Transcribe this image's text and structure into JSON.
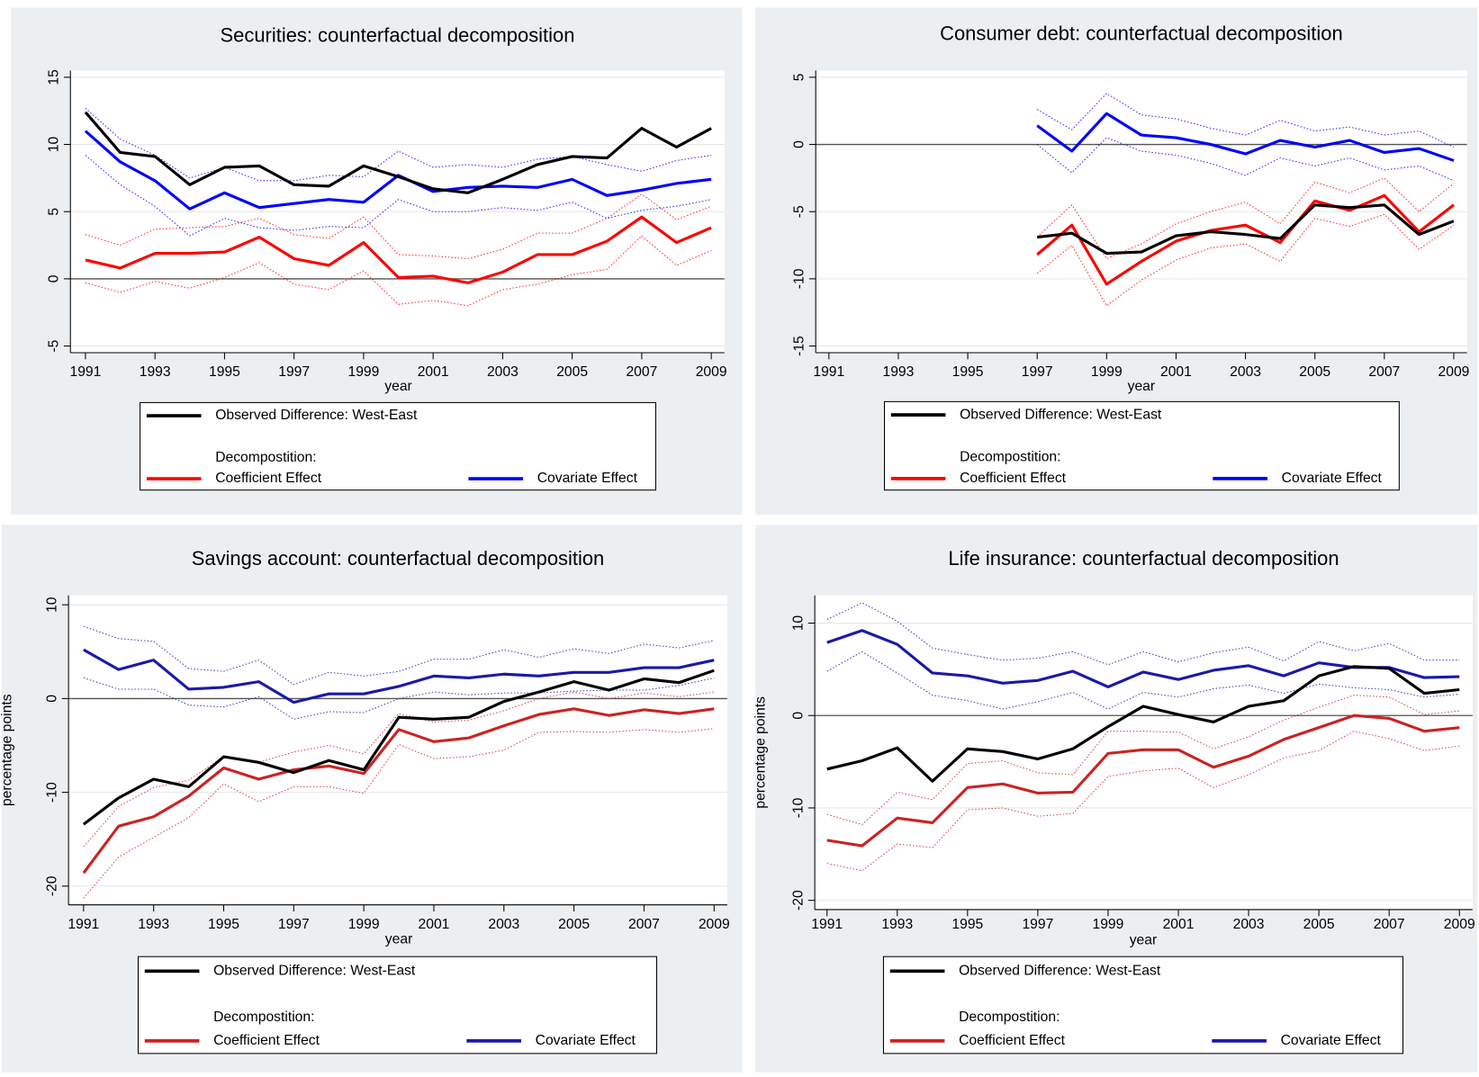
{
  "chart_data": [
    {
      "type": "line",
      "title": "Securities: counterfactual decomposition",
      "xlabel": "year",
      "x": [
        1991,
        1992,
        1993,
        1994,
        1995,
        1996,
        1997,
        1998,
        1999,
        2000,
        2001,
        2002,
        2003,
        2004,
        2005,
        2006,
        2007,
        2008,
        2009
      ],
      "xlim": [
        1991,
        2009
      ],
      "xticks": [
        1991,
        1993,
        1995,
        1997,
        1999,
        2001,
        2003,
        2005,
        2007,
        2009
      ],
      "ylim": [
        -5.5,
        15.5
      ],
      "yticks": [
        -5,
        0,
        5,
        10,
        15
      ],
      "grid": true,
      "refline": 0,
      "legend_heading": "Decompostition:",
      "series": [
        {
          "name": "Observed Difference: West-East",
          "color": "#000000",
          "values": [
            12.4,
            9.4,
            9.1,
            7.0,
            8.3,
            8.4,
            7.0,
            6.9,
            8.4,
            7.6,
            6.7,
            6.4,
            7.4,
            8.5,
            9.1,
            9.0,
            11.2,
            9.8,
            11.2
          ]
        },
        {
          "name": "Coefficient Effect",
          "color": "#ff0000",
          "values": [
            1.4,
            0.8,
            1.9,
            1.9,
            2.0,
            3.1,
            1.5,
            1.0,
            2.7,
            0.1,
            0.2,
            -0.3,
            0.5,
            1.8,
            1.8,
            2.8,
            4.6,
            2.7,
            3.8
          ],
          "ci_upper": [
            3.3,
            2.5,
            3.7,
            3.8,
            3.9,
            4.5,
            3.3,
            3.0,
            4.6,
            1.8,
            1.7,
            1.5,
            2.2,
            3.4,
            3.4,
            4.5,
            6.3,
            4.4,
            5.4
          ],
          "ci_lower": [
            -0.3,
            -1.0,
            -0.2,
            -0.7,
            0.1,
            1.2,
            -0.4,
            -0.8,
            0.6,
            -1.9,
            -1.6,
            -2.0,
            -0.8,
            -0.4,
            0.3,
            0.7,
            3.2,
            1.0,
            2.1
          ]
        },
        {
          "name": "Covariate Effect",
          "color": "#0000ff",
          "values": [
            11.0,
            8.7,
            7.3,
            5.2,
            6.4,
            5.3,
            5.6,
            5.9,
            5.7,
            7.7,
            6.5,
            6.8,
            6.9,
            6.8,
            7.4,
            6.2,
            6.6,
            7.1,
            7.4
          ],
          "ci_upper": [
            12.7,
            10.4,
            9.2,
            7.5,
            8.3,
            7.3,
            7.3,
            7.7,
            7.6,
            9.5,
            8.3,
            8.5,
            8.3,
            8.9,
            9.1,
            8.5,
            8.0,
            8.8,
            9.2
          ],
          "ci_lower": [
            9.2,
            7.0,
            5.4,
            3.2,
            4.5,
            3.8,
            3.6,
            3.9,
            3.8,
            5.9,
            5.0,
            5.0,
            5.3,
            5.1,
            5.7,
            4.5,
            5.1,
            5.4,
            5.9
          ]
        }
      ]
    },
    {
      "type": "line",
      "title": "Consumer debt: counterfactual decomposition",
      "xlabel": "year",
      "x": [
        1991,
        1992,
        1993,
        1994,
        1995,
        1996,
        1997,
        1998,
        1999,
        2000,
        2001,
        2002,
        2003,
        2004,
        2005,
        2006,
        2007,
        2008,
        2009
      ],
      "xlim": [
        1991,
        2009
      ],
      "xticks": [
        1991,
        1993,
        1995,
        1997,
        1999,
        2001,
        2003,
        2005,
        2007,
        2009
      ],
      "ylim": [
        -15.5,
        5.5
      ],
      "yticks": [
        -15,
        -10,
        -5,
        0,
        5
      ],
      "grid": true,
      "refline": 0,
      "legend_heading": "Decompostition:",
      "series": [
        {
          "name": "Observed Difference: West-East",
          "color": "#000000",
          "values": [
            null,
            null,
            null,
            null,
            null,
            null,
            -6.9,
            -6.6,
            -8.1,
            -8.0,
            -6.8,
            -6.5,
            -6.7,
            -7.0,
            -4.5,
            -4.7,
            -4.5,
            -6.7,
            -5.7
          ]
        },
        {
          "name": "Coefficient Effect",
          "color": "#ff0000",
          "values": [
            null,
            null,
            null,
            null,
            null,
            null,
            -8.2,
            -6.0,
            -10.4,
            -8.7,
            -7.2,
            -6.4,
            -6.0,
            -7.3,
            -4.2,
            -4.9,
            -3.8,
            -6.5,
            -4.5
          ],
          "ci_upper": [
            null,
            null,
            null,
            null,
            null,
            null,
            -6.9,
            -4.5,
            -8.5,
            -7.4,
            -5.9,
            -5.0,
            -4.3,
            -5.9,
            -2.8,
            -3.6,
            -2.5,
            -5.0,
            -2.9
          ],
          "ci_lower": [
            null,
            null,
            null,
            null,
            null,
            null,
            -9.6,
            -7.5,
            -12.0,
            -10.1,
            -8.6,
            -7.7,
            -7.4,
            -8.7,
            -5.5,
            -6.1,
            -5.2,
            -7.8,
            -6.0
          ]
        },
        {
          "name": "Covariate Effect",
          "color": "#0000ff",
          "values": [
            null,
            null,
            null,
            null,
            null,
            null,
            1.4,
            -0.5,
            2.3,
            0.7,
            0.5,
            0.0,
            -0.7,
            0.3,
            -0.2,
            0.3,
            -0.6,
            -0.3,
            -1.2
          ],
          "ci_upper": [
            null,
            null,
            null,
            null,
            null,
            null,
            2.6,
            1.1,
            3.8,
            2.2,
            1.9,
            1.2,
            0.7,
            1.8,
            1.0,
            1.3,
            0.7,
            1.0,
            -0.2
          ],
          "ci_lower": [
            null,
            null,
            null,
            null,
            null,
            null,
            0.0,
            -2.1,
            0.5,
            -0.5,
            -0.8,
            -1.4,
            -2.3,
            -1.0,
            -1.6,
            -1.0,
            -1.9,
            -1.6,
            -2.7
          ]
        }
      ]
    },
    {
      "type": "line",
      "title": "Savings account: counterfactual decomposition",
      "xlabel": "year",
      "ylabel": "percentage points",
      "x": [
        1991,
        1992,
        1993,
        1994,
        1995,
        1996,
        1997,
        1998,
        1999,
        2000,
        2001,
        2002,
        2003,
        2004,
        2005,
        2006,
        2007,
        2008,
        2009
      ],
      "xlim": [
        1991,
        2009
      ],
      "xticks": [
        1991,
        1993,
        1995,
        1997,
        1999,
        2001,
        2003,
        2005,
        2007,
        2009
      ],
      "ylim": [
        -22,
        11
      ],
      "yticks": [
        -20,
        -10,
        0,
        10
      ],
      "grid": true,
      "refline": 0,
      "legend_heading": "Decompostition:",
      "series": [
        {
          "name": "Observed Difference: West-East",
          "color": "#000000",
          "values": [
            -13.4,
            -10.6,
            -8.6,
            -9.4,
            -6.2,
            -6.8,
            -7.9,
            -6.6,
            -7.6,
            -2.0,
            -2.2,
            -2.0,
            -0.3,
            0.7,
            1.8,
            0.9,
            2.1,
            1.7,
            3.0
          ]
        },
        {
          "name": "Coefficient Effect",
          "color": "#cc2222",
          "values": [
            -18.6,
            -13.6,
            -12.6,
            -10.4,
            -7.4,
            -8.6,
            -7.6,
            -7.2,
            -8.0,
            -3.3,
            -4.6,
            -4.2,
            -2.9,
            -1.7,
            -1.1,
            -1.8,
            -1.2,
            -1.6,
            -1.1
          ],
          "ci_upper": [
            -15.8,
            -11.5,
            -9.5,
            -8.7,
            -6.2,
            -6.8,
            -5.7,
            -5.0,
            -5.9,
            -1.6,
            -2.5,
            -2.3,
            -1.3,
            0.0,
            0.7,
            0.0,
            0.6,
            0.2,
            0.7
          ],
          "ci_lower": [
            -21.3,
            -16.9,
            -14.8,
            -12.7,
            -9.1,
            -11.0,
            -9.4,
            -9.4,
            -10.1,
            -4.9,
            -6.4,
            -6.2,
            -5.5,
            -3.6,
            -3.5,
            -3.6,
            -3.3,
            -3.6,
            -3.2
          ]
        },
        {
          "name": "Covariate Effect",
          "color": "#1a1aa8",
          "values": [
            5.2,
            3.1,
            4.1,
            1.0,
            1.2,
            1.8,
            -0.4,
            0.5,
            0.5,
            1.3,
            2.4,
            2.2,
            2.6,
            2.4,
            2.8,
            2.8,
            3.3,
            3.3,
            4.1
          ],
          "ci_upper": [
            7.7,
            6.4,
            6.1,
            3.2,
            2.9,
            4.1,
            1.5,
            2.8,
            2.4,
            2.9,
            4.2,
            4.2,
            5.2,
            4.4,
            5.3,
            4.8,
            5.8,
            5.4,
            6.2
          ],
          "ci_lower": [
            2.2,
            1.0,
            1.0,
            -0.7,
            -0.9,
            0.2,
            -2.2,
            -1.4,
            -1.5,
            0.0,
            0.7,
            0.4,
            0.6,
            0.6,
            0.8,
            0.9,
            0.9,
            1.4,
            2.2
          ]
        }
      ]
    },
    {
      "type": "line",
      "title": "Life insurance: counterfactual decomposition",
      "xlabel": "year",
      "ylabel": "percentage points",
      "x": [
        1991,
        1992,
        1993,
        1994,
        1995,
        1996,
        1997,
        1998,
        1999,
        2000,
        2001,
        2002,
        2003,
        2004,
        2005,
        2006,
        2007,
        2008,
        2009
      ],
      "xlim": [
        1991,
        2009
      ],
      "xticks": [
        1991,
        1993,
        1995,
        1997,
        1999,
        2001,
        2003,
        2005,
        2007,
        2009
      ],
      "ylim": [
        -21,
        13
      ],
      "yticks": [
        -20,
        -10,
        0,
        10
      ],
      "grid": true,
      "refline": 0,
      "legend_heading": "Decompostition:",
      "series": [
        {
          "name": "Observed Difference: West-East",
          "color": "#000000",
          "values": [
            -5.8,
            -4.9,
            -3.5,
            -7.1,
            -3.6,
            -3.9,
            -4.7,
            -3.6,
            -1.2,
            1.0,
            0.1,
            -0.7,
            1.0,
            1.6,
            4.3,
            5.3,
            5.1,
            2.4,
            2.8
          ]
        },
        {
          "name": "Coefficient Effect",
          "color": "#cc2222",
          "values": [
            -13.5,
            -14.1,
            -11.1,
            -11.6,
            -7.8,
            -7.4,
            -8.4,
            -8.3,
            -4.1,
            -3.7,
            -3.7,
            -5.6,
            -4.4,
            -2.6,
            -1.3,
            0.0,
            -0.3,
            -1.7,
            -1.3
          ],
          "ci_upper": [
            -10.7,
            -11.8,
            -8.3,
            -9.1,
            -5.2,
            -4.9,
            -6.2,
            -6.4,
            -1.7,
            -1.7,
            -1.8,
            -3.6,
            -2.3,
            -0.5,
            0.9,
            2.2,
            2.0,
            0.1,
            0.5
          ],
          "ci_lower": [
            -16.0,
            -16.8,
            -13.9,
            -14.3,
            -10.2,
            -10.0,
            -10.9,
            -10.6,
            -6.6,
            -6.0,
            -5.7,
            -7.8,
            -6.4,
            -4.6,
            -3.8,
            -1.7,
            -2.5,
            -3.8,
            -3.3
          ]
        },
        {
          "name": "Covariate Effect",
          "color": "#1a1aa8",
          "values": [
            7.9,
            9.2,
            7.7,
            4.6,
            4.3,
            3.5,
            3.8,
            4.8,
            3.1,
            4.7,
            3.9,
            4.9,
            5.4,
            4.3,
            5.7,
            5.2,
            5.2,
            4.1,
            4.2
          ],
          "ci_upper": [
            10.4,
            12.2,
            10.2,
            7.3,
            6.6,
            6.0,
            6.2,
            6.9,
            5.5,
            6.9,
            5.8,
            6.8,
            7.4,
            5.9,
            8.0,
            7.0,
            7.8,
            6.0,
            6.0
          ],
          "ci_lower": [
            4.8,
            6.9,
            4.6,
            2.2,
            1.6,
            0.7,
            1.5,
            2.5,
            0.7,
            2.5,
            2.0,
            2.9,
            3.3,
            2.4,
            3.4,
            3.0,
            2.8,
            2.0,
            2.3
          ]
        }
      ]
    }
  ]
}
